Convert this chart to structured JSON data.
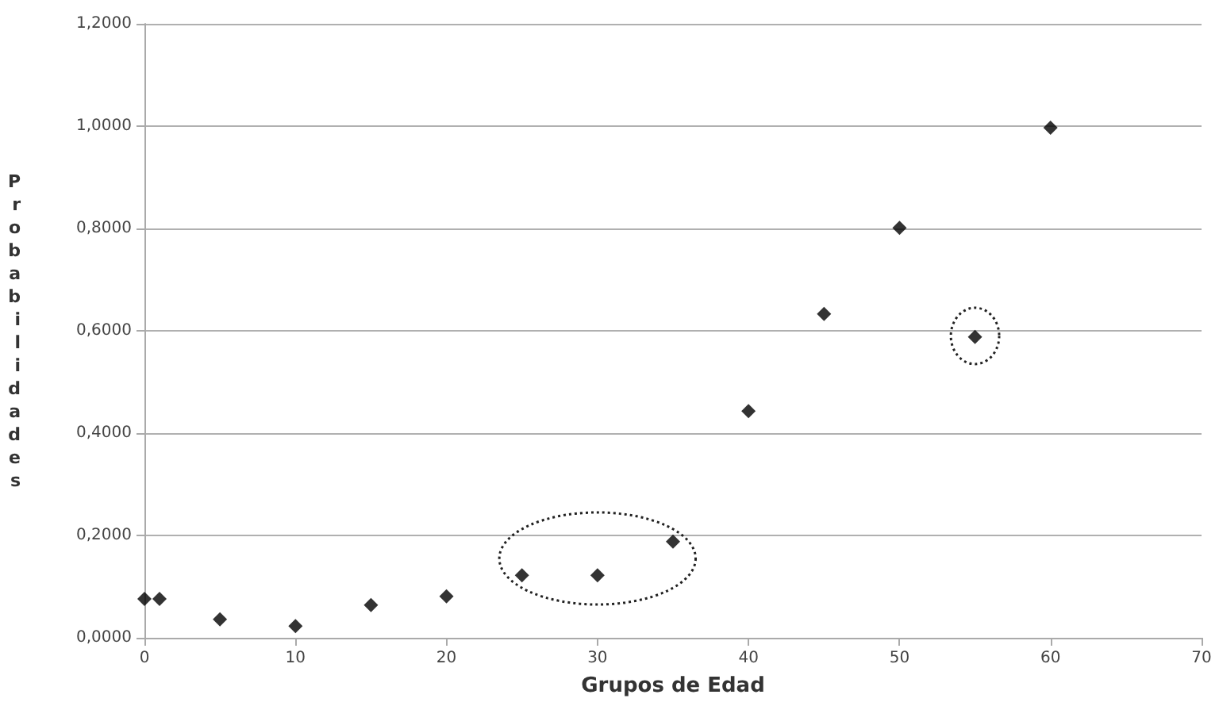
{
  "chart_data": {
    "type": "scatter",
    "xlabel": "Grupos de Edad",
    "ylabel": "Probabilidades",
    "x": [
      0,
      1,
      5,
      10,
      15,
      20,
      25,
      30,
      35,
      40,
      45,
      50,
      55,
      60
    ],
    "series": [
      {
        "color": "#000000",
        "values": [
          0.076,
          0.076,
          0.036,
          0.023,
          0.064,
          0.081,
          0.122,
          0.122,
          0.188,
          0.443,
          0.633,
          0.801,
          0.588,
          0.997
        ]
      }
    ],
    "xlim": [
      0,
      70
    ],
    "xticks": [
      0,
      10,
      20,
      30,
      40,
      50,
      60,
      70
    ],
    "ylim": [
      0,
      1.2
    ],
    "yticks": [
      {
        "value": 0,
        "label": "0,0000"
      },
      {
        "value": 0.2,
        "label": "0,2000"
      },
      {
        "value": 0.4,
        "label": "0,4000"
      },
      {
        "value": 0.6,
        "label": "0,6000"
      },
      {
        "value": 0.8,
        "label": "0,8000"
      },
      {
        "value": 1,
        "label": "1,0000"
      },
      {
        "value": 1.2,
        "label": "1,2000"
      }
    ],
    "grid": "y",
    "marker": "diamond"
  }
}
